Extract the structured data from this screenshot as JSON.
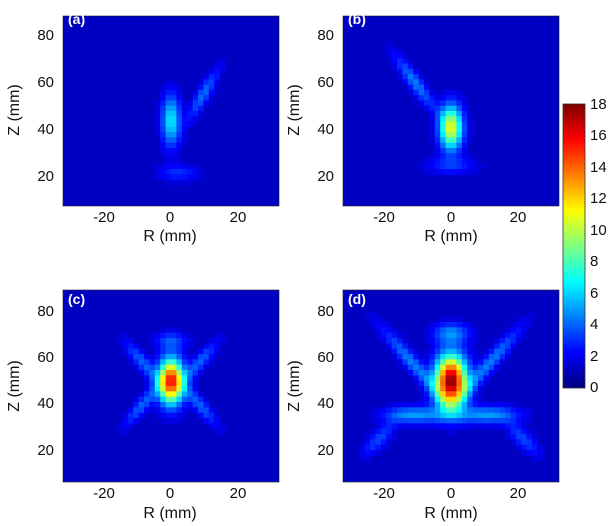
{
  "colorbar": {
    "min": 0,
    "max": 18,
    "ticks": [
      "18",
      "16",
      "14",
      "12",
      "10",
      "8",
      "6",
      "4",
      "2",
      "0"
    ],
    "colormap": [
      "#00007f",
      "#0000ff",
      "#007fff",
      "#00ffff",
      "#7fff7f",
      "#ffff00",
      "#ff7f00",
      "#ff0000",
      "#7f0000"
    ]
  },
  "chart_data": [
    {
      "type": "heatmap",
      "panel_label": "(a)",
      "xlabel": "R (mm)",
      "ylabel": "Z (mm)",
      "xlim": [
        -30,
        30
      ],
      "ylim": [
        10,
        90
      ],
      "xticks": [
        "-20",
        "0",
        "20"
      ],
      "yticks": [
        "80",
        "60",
        "40",
        "20"
      ],
      "background_value": 1.2,
      "blobs": [
        {
          "r": 0,
          "z": 46,
          "sr": 1.8,
          "sz": 7.5,
          "value": 6.5
        },
        {
          "r": 9,
          "z": 57,
          "sr": 1.4,
          "sz": 7.5,
          "value": 4.2,
          "tilt": 0.35
        },
        {
          "r": 2,
          "z": 24,
          "sr": 4,
          "sz": 2.5,
          "value": 3
        }
      ]
    },
    {
      "type": "heatmap",
      "panel_label": "(b)",
      "xlabel": "R (mm)",
      "ylabel": "Z (mm)",
      "xlim": [
        -30,
        30
      ],
      "ylim": [
        10,
        90
      ],
      "xticks": [
        "-20",
        "0",
        "20"
      ],
      "yticks": [
        "80",
        "60",
        "40",
        "20"
      ],
      "background_value": 1.2,
      "blobs": [
        {
          "r": 0,
          "z": 43,
          "sr": 2.2,
          "sz": 6.5,
          "value": 11
        },
        {
          "r": -10,
          "z": 62,
          "sr": 1.6,
          "sz": 8,
          "value": 4.5,
          "tilt": -0.45
        },
        {
          "r": 0,
          "z": 27,
          "sr": 5,
          "sz": 2.5,
          "value": 3
        }
      ]
    },
    {
      "type": "heatmap",
      "panel_label": "(c)",
      "xlabel": "R (mm)",
      "ylabel": "Z (mm)",
      "xlim": [
        -30,
        30
      ],
      "ylim": [
        10,
        90
      ],
      "xticks": [
        "-20",
        "0",
        "20"
      ],
      "yticks": [
        "80",
        "60",
        "40",
        "20"
      ],
      "background_value": 1.2,
      "blobs": [
        {
          "r": 0,
          "z": 52,
          "sr": 2.4,
          "sz": 6.5,
          "value": 15.5
        },
        {
          "r": -8,
          "z": 60,
          "sr": 1.6,
          "sz": 6,
          "value": 4,
          "tilt": -0.5
        },
        {
          "r": 8,
          "z": 42,
          "sr": 1.6,
          "sz": 6,
          "value": 4,
          "tilt": -0.5
        },
        {
          "r": -8,
          "z": 42,
          "sr": 1.6,
          "sz": 6,
          "value": 4,
          "tilt": 0.5
        },
        {
          "r": 8,
          "z": 60,
          "sr": 1.6,
          "sz": 6,
          "value": 4,
          "tilt": 0.5
        },
        {
          "r": 0,
          "z": 69,
          "sr": 3,
          "sz": 2.5,
          "value": 3.5
        }
      ]
    },
    {
      "type": "heatmap",
      "panel_label": "(d)",
      "xlabel": "R (mm)",
      "ylabel": "Z (mm)",
      "xlim": [
        -30,
        30
      ],
      "ylim": [
        10,
        90
      ],
      "xticks": [
        "-20",
        "0",
        "20"
      ],
      "yticks": [
        "80",
        "60",
        "40",
        "20"
      ],
      "background_value": 1.2,
      "blobs": [
        {
          "r": 0,
          "z": 52,
          "sr": 3,
          "sz": 7.5,
          "value": 18
        },
        {
          "r": -11,
          "z": 60,
          "sr": 1.8,
          "sz": 10,
          "value": 4.5,
          "tilt": -0.55
        },
        {
          "r": 11,
          "z": 60,
          "sr": 1.8,
          "sz": 10,
          "value": 4.5,
          "tilt": 0.55
        },
        {
          "r": -10,
          "z": 38,
          "sr": 6,
          "sz": 2.5,
          "value": 5
        },
        {
          "r": 10,
          "z": 38,
          "sr": 6,
          "sz": 2.5,
          "value": 5
        },
        {
          "r": 0,
          "z": 72,
          "sr": 3.5,
          "sz": 3,
          "value": 4.5
        },
        {
          "r": -20,
          "z": 28,
          "sr": 2,
          "sz": 5,
          "value": 3.5,
          "tilt": 0.5
        },
        {
          "r": 20,
          "z": 28,
          "sr": 2,
          "sz": 5,
          "value": 3.5,
          "tilt": -0.5
        }
      ]
    }
  ]
}
